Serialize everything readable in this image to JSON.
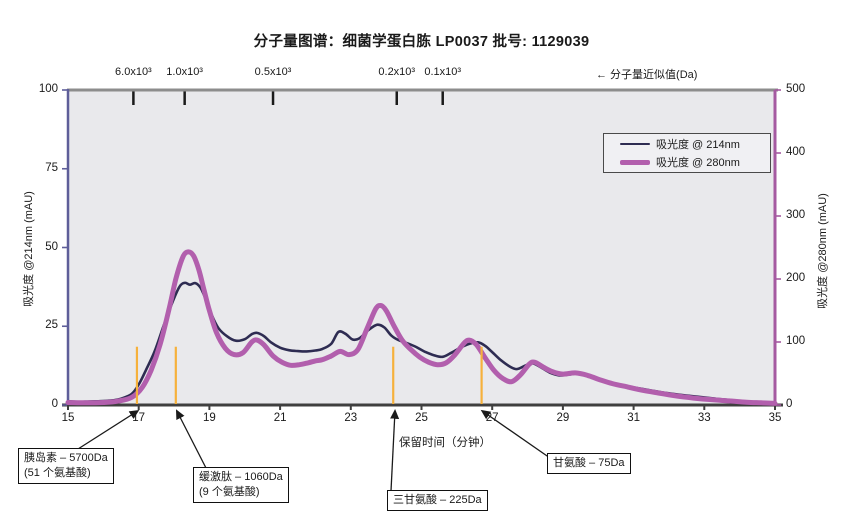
{
  "title": "分子量图谱：细菌学蛋白胨 LP0037  批号: 1129039",
  "chart_data": {
    "type": "line",
    "title": "分子量图谱：细菌学蛋白胨 LP0037  批号: 1129039",
    "x_axis": {
      "label": "保留时间（分钟）",
      "min": 15,
      "max": 35,
      "ticks": [
        15,
        17,
        19,
        21,
        23,
        25,
        27,
        29,
        31,
        33,
        35
      ]
    },
    "y_left": {
      "label": "吸光度 @214nm (mAU)",
      "min": 0,
      "max": 100,
      "ticks": [
        0,
        25,
        50,
        75,
        100
      ]
    },
    "y_right": {
      "label": "吸光度 @280nm (mAU)",
      "min": 0,
      "max": 500,
      "ticks": [
        0,
        100,
        200,
        300,
        400,
        500
      ]
    },
    "top_axis": {
      "label": "← 分子量近似值(Da)",
      "ticks": [
        {
          "time": 16.85,
          "label": "6.0x10³"
        },
        {
          "time": 18.3,
          "label": "1.0x10³"
        },
        {
          "time": 20.8,
          "label": "0.5x10³"
        },
        {
          "time": 24.3,
          "label": "0.2x10³"
        },
        {
          "time": 25.6,
          "label": "0.1x10³"
        }
      ]
    },
    "legend": [
      {
        "name": "吸光度 @ 214nm",
        "color": "#2e2c52",
        "line_width": 2.6
      },
      {
        "name": "吸光度 @ 280nm",
        "color": "#b25fad",
        "line_width": 5
      }
    ],
    "series": [
      {
        "name": "吸光度 @ 214nm",
        "axis": "left",
        "color": "#2e2c52",
        "width": 2.6,
        "points": [
          [
            15,
            1.2
          ],
          [
            15.3,
            1.0
          ],
          [
            15.6,
            1.1
          ],
          [
            15.9,
            1.2
          ],
          [
            16.2,
            1.4
          ],
          [
            16.5,
            2.0
          ],
          [
            16.8,
            3.5
          ],
          [
            17.0,
            6.5
          ],
          [
            17.2,
            11
          ],
          [
            17.45,
            17
          ],
          [
            17.7,
            25
          ],
          [
            17.95,
            32.5
          ],
          [
            18.15,
            37.5
          ],
          [
            18.3,
            38.8
          ],
          [
            18.45,
            38.2
          ],
          [
            18.6,
            38.7
          ],
          [
            18.75,
            37.2
          ],
          [
            18.9,
            33.5
          ],
          [
            19.05,
            29
          ],
          [
            19.25,
            24.5
          ],
          [
            19.5,
            21.8
          ],
          [
            19.75,
            20.4
          ],
          [
            20.0,
            20.9
          ],
          [
            20.2,
            22.5
          ],
          [
            20.35,
            22.9
          ],
          [
            20.55,
            21.8
          ],
          [
            20.75,
            19.8
          ],
          [
            21.0,
            18.2
          ],
          [
            21.25,
            17.4
          ],
          [
            21.5,
            17.1
          ],
          [
            21.75,
            17.0
          ],
          [
            22.0,
            17.3
          ],
          [
            22.2,
            17.8
          ],
          [
            22.45,
            19.5
          ],
          [
            22.65,
            23.2
          ],
          [
            22.85,
            22.6
          ],
          [
            23.05,
            20.8
          ],
          [
            23.25,
            21.2
          ],
          [
            23.5,
            23.8
          ],
          [
            23.75,
            25.5
          ],
          [
            23.95,
            24.6
          ],
          [
            24.15,
            22.0
          ],
          [
            24.35,
            20.6
          ],
          [
            24.6,
            19.6
          ],
          [
            24.85,
            18.4
          ],
          [
            25.1,
            16.9
          ],
          [
            25.35,
            15.8
          ],
          [
            25.6,
            15.3
          ],
          [
            25.85,
            16.6
          ],
          [
            26.1,
            18.2
          ],
          [
            26.35,
            19.4
          ],
          [
            26.6,
            19.9
          ],
          [
            26.8,
            18.8
          ],
          [
            27.0,
            16.8
          ],
          [
            27.25,
            14.2
          ],
          [
            27.5,
            12.2
          ],
          [
            27.7,
            11.4
          ],
          [
            27.95,
            12.6
          ],
          [
            28.15,
            13.2
          ],
          [
            28.4,
            11.8
          ],
          [
            28.65,
            10.2
          ],
          [
            28.9,
            9.4
          ],
          [
            29.2,
            9.7
          ],
          [
            29.5,
            10.1
          ],
          [
            29.8,
            9.2
          ],
          [
            30.1,
            7.8
          ],
          [
            30.5,
            6.6
          ],
          [
            31.0,
            5.6
          ],
          [
            31.5,
            4.6
          ],
          [
            32.0,
            3.7
          ],
          [
            32.5,
            3.0
          ],
          [
            33.0,
            2.4
          ],
          [
            33.5,
            1.8
          ],
          [
            34.0,
            1.3
          ],
          [
            34.5,
            0.9
          ],
          [
            35.0,
            0.6
          ]
        ]
      },
      {
        "name": "吸光度 @ 280nm",
        "axis": "right",
        "color": "#b25fad",
        "width": 5,
        "points": [
          [
            15,
            4
          ],
          [
            15.5,
            3.5
          ],
          [
            16,
            4
          ],
          [
            16.4,
            6
          ],
          [
            16.8,
            12
          ],
          [
            17.1,
            28
          ],
          [
            17.35,
            55
          ],
          [
            17.6,
            95
          ],
          [
            17.85,
            150
          ],
          [
            18.05,
            200
          ],
          [
            18.25,
            235
          ],
          [
            18.4,
            243
          ],
          [
            18.55,
            237
          ],
          [
            18.7,
            215
          ],
          [
            18.85,
            182
          ],
          [
            19.0,
            150
          ],
          [
            19.2,
            115
          ],
          [
            19.45,
            90
          ],
          [
            19.7,
            80
          ],
          [
            19.95,
            83
          ],
          [
            20.2,
            100
          ],
          [
            20.35,
            103
          ],
          [
            20.55,
            95
          ],
          [
            20.8,
            78
          ],
          [
            21.05,
            68
          ],
          [
            21.3,
            63
          ],
          [
            21.55,
            64
          ],
          [
            21.8,
            67
          ],
          [
            22.0,
            70
          ],
          [
            22.2,
            72
          ],
          [
            22.45,
            78
          ],
          [
            22.7,
            85
          ],
          [
            22.95,
            80
          ],
          [
            23.2,
            88
          ],
          [
            23.45,
            120
          ],
          [
            23.7,
            152
          ],
          [
            23.85,
            158
          ],
          [
            24.0,
            150
          ],
          [
            24.2,
            128
          ],
          [
            24.45,
            103
          ],
          [
            24.7,
            88
          ],
          [
            24.95,
            76
          ],
          [
            25.2,
            68
          ],
          [
            25.45,
            64
          ],
          [
            25.7,
            67
          ],
          [
            25.95,
            80
          ],
          [
            26.2,
            98
          ],
          [
            26.35,
            103
          ],
          [
            26.55,
            96
          ],
          [
            26.8,
            75
          ],
          [
            27.05,
            55
          ],
          [
            27.3,
            42
          ],
          [
            27.55,
            37
          ],
          [
            27.8,
            48
          ],
          [
            28.05,
            65
          ],
          [
            28.2,
            68
          ],
          [
            28.45,
            60
          ],
          [
            28.7,
            53
          ],
          [
            29.0,
            49
          ],
          [
            29.35,
            51
          ],
          [
            29.7,
            47
          ],
          [
            30.0,
            41
          ],
          [
            30.4,
            34
          ],
          [
            30.8,
            29
          ],
          [
            31.2,
            24
          ],
          [
            31.7,
            19
          ],
          [
            32.2,
            14.5
          ],
          [
            32.7,
            11
          ],
          [
            33.2,
            8.5
          ],
          [
            33.7,
            6.5
          ],
          [
            34.2,
            4.5
          ],
          [
            34.6,
            3.5
          ],
          [
            35.0,
            2.5
          ]
        ]
      }
    ],
    "markers": {
      "color": "#f6b13c",
      "times": [
        16.95,
        18.05,
        24.2,
        26.7
      ],
      "top_value_left_axis": 18.5
    },
    "annotations": [
      {
        "lines": [
          "胰岛素 – 5700Da",
          "(51 个氨基酸)"
        ],
        "target_time": 16.97
      },
      {
        "lines": [
          "缓激肽 – 1060Da",
          "(9 个氨基酸)"
        ],
        "target_time": 18.08
      },
      {
        "lines": [
          "三甘氨酸 – 225Da"
        ],
        "target_time": 24.25
      },
      {
        "lines": [
          "甘氨酸 – 75Da"
        ],
        "target_time": 26.72
      }
    ],
    "colors": {
      "plot_background": "#e9e9ec",
      "left_axis": "#5e5e99",
      "right_axis": "#a55aa1",
      "top_frame": "#8d8d8d",
      "bottom_axis": "#3f3f3f",
      "marker_line": "#f6b13c",
      "series_214": "#2e2c52",
      "series_280": "#b25fad"
    },
    "grid": false,
    "legend_position": "top-right-inside"
  }
}
